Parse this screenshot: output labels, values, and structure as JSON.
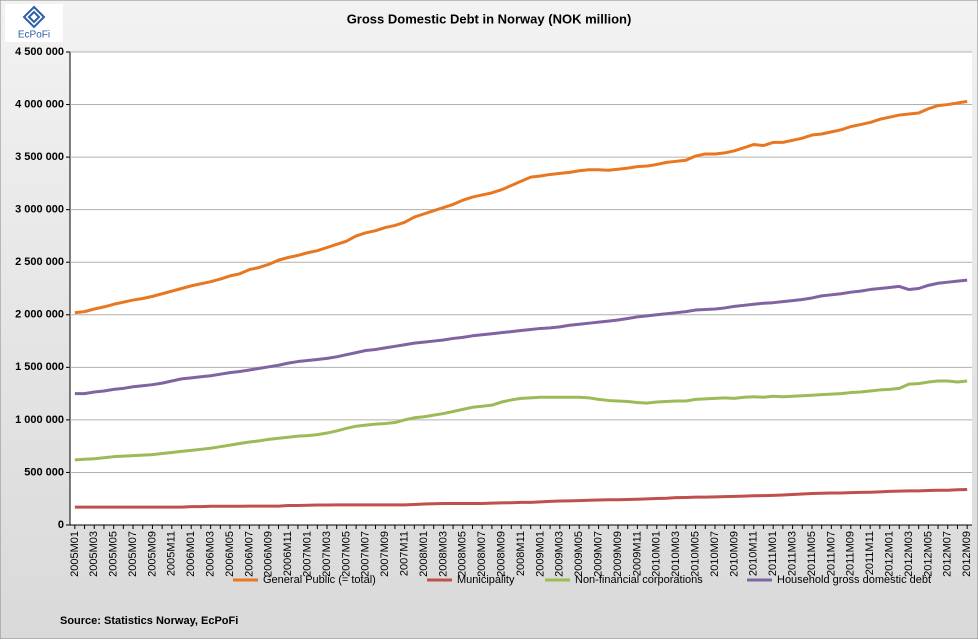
{
  "chart_data": {
    "type": "line",
    "title": "Gross Domestic Debt in Norway (NOK million)",
    "logo_text": "EcPoFi",
    "source": "Source: Statistics Norway, EcPoFi",
    "categories": [
      "2005M01",
      null,
      "2005M03",
      null,
      "2005M05",
      null,
      "2005M07",
      null,
      "2005M09",
      null,
      "2005M11",
      null,
      "2006M01",
      null,
      "2006M03",
      null,
      "2006M05",
      null,
      "2006M07",
      null,
      "2006M09",
      null,
      "2006M11",
      null,
      "2007M01",
      null,
      "2007M03",
      null,
      "2007M05",
      null,
      "2007M07",
      null,
      "2007M09",
      null,
      "2007M11",
      null,
      "2008M01",
      null,
      "2008M03",
      null,
      "2008M05",
      null,
      "2008M07",
      null,
      "2008M09",
      null,
      "2008M11",
      null,
      "2009M01",
      null,
      "2009M03",
      null,
      "2009M05",
      null,
      "2009M07",
      null,
      "2009M09",
      null,
      "2009M11",
      null,
      "2010M01",
      null,
      "2010M03",
      null,
      "2010M05",
      null,
      "2010M07",
      null,
      "2010M09",
      null,
      "2010M11",
      null,
      "2011M01",
      null,
      "2011M03",
      null,
      "2011M05",
      null,
      "2011M07",
      null,
      "2011M09",
      null,
      "2011M11",
      null,
      "2012M01",
      null,
      "2012M03",
      null,
      "2012M05",
      null,
      "2012M07",
      null,
      "2012M09"
    ],
    "series": [
      {
        "name": "General Public (= total)",
        "color": "#e87722",
        "values": [
          2020000,
          2030000,
          2055000,
          2075000,
          2100000,
          2120000,
          2140000,
          2155000,
          2175000,
          2200000,
          2225000,
          2250000,
          2275000,
          2295000,
          2315000,
          2340000,
          2370000,
          2390000,
          2430000,
          2450000,
          2480000,
          2520000,
          2545000,
          2565000,
          2590000,
          2610000,
          2640000,
          2670000,
          2700000,
          2750000,
          2780000,
          2800000,
          2830000,
          2850000,
          2880000,
          2930000,
          2960000,
          2990000,
          3020000,
          3050000,
          3090000,
          3120000,
          3140000,
          3160000,
          3190000,
          3230000,
          3270000,
          3310000,
          3320000,
          3335000,
          3345000,
          3355000,
          3370000,
          3380000,
          3380000,
          3375000,
          3385000,
          3395000,
          3410000,
          3415000,
          3430000,
          3450000,
          3460000,
          3470000,
          3510000,
          3530000,
          3530000,
          3540000,
          3560000,
          3590000,
          3620000,
          3610000,
          3640000,
          3640000,
          3660000,
          3680000,
          3710000,
          3720000,
          3740000,
          3760000,
          3790000,
          3810000,
          3830000,
          3860000,
          3880000,
          3900000,
          3910000,
          3920000,
          3960000,
          3990000,
          4000000,
          4015000,
          4030000
        ]
      },
      {
        "name": "Municipality",
        "color": "#c0504d",
        "values": [
          170000,
          170000,
          170000,
          170000,
          170000,
          170000,
          170000,
          170000,
          170000,
          170000,
          170000,
          170000,
          175000,
          175000,
          178000,
          178000,
          178000,
          178000,
          180000,
          180000,
          180000,
          180000,
          185000,
          185000,
          188000,
          190000,
          190000,
          192000,
          192000,
          192000,
          192000,
          192000,
          192000,
          192000,
          192000,
          195000,
          200000,
          202000,
          205000,
          205000,
          205000,
          205000,
          205000,
          208000,
          210000,
          212000,
          215000,
          215000,
          220000,
          225000,
          228000,
          230000,
          232000,
          235000,
          238000,
          240000,
          240000,
          242000,
          245000,
          248000,
          252000,
          255000,
          260000,
          262000,
          265000,
          265000,
          268000,
          270000,
          272000,
          275000,
          278000,
          280000,
          282000,
          285000,
          290000,
          295000,
          300000,
          302000,
          305000,
          305000,
          308000,
          310000,
          312000,
          315000,
          320000,
          322000,
          325000,
          325000,
          328000,
          330000,
          330000,
          335000,
          338000
        ]
      },
      {
        "name": "Non-financial corporations",
        "color": "#9bbb59",
        "values": [
          620000,
          625000,
          630000,
          640000,
          650000,
          655000,
          660000,
          665000,
          670000,
          680000,
          690000,
          700000,
          710000,
          720000,
          730000,
          745000,
          760000,
          775000,
          790000,
          800000,
          815000,
          825000,
          835000,
          845000,
          850000,
          860000,
          875000,
          895000,
          920000,
          940000,
          950000,
          960000,
          965000,
          975000,
          1000000,
          1020000,
          1030000,
          1045000,
          1060000,
          1080000,
          1100000,
          1120000,
          1130000,
          1140000,
          1170000,
          1190000,
          1205000,
          1210000,
          1215000,
          1215000,
          1215000,
          1215000,
          1215000,
          1210000,
          1195000,
          1185000,
          1180000,
          1175000,
          1165000,
          1160000,
          1170000,
          1175000,
          1180000,
          1180000,
          1195000,
          1200000,
          1205000,
          1210000,
          1205000,
          1215000,
          1220000,
          1215000,
          1225000,
          1220000,
          1225000,
          1230000,
          1235000,
          1240000,
          1245000,
          1250000,
          1260000,
          1265000,
          1275000,
          1285000,
          1290000,
          1300000,
          1340000,
          1345000,
          1360000,
          1370000,
          1370000,
          1360000,
          1370000
        ]
      },
      {
        "name": "Household gross domestic debt",
        "color": "#8064a2",
        "values": [
          1250000,
          1250000,
          1265000,
          1275000,
          1290000,
          1300000,
          1315000,
          1325000,
          1335000,
          1350000,
          1370000,
          1390000,
          1400000,
          1410000,
          1420000,
          1435000,
          1450000,
          1460000,
          1475000,
          1490000,
          1505000,
          1520000,
          1540000,
          1555000,
          1565000,
          1575000,
          1585000,
          1600000,
          1620000,
          1640000,
          1660000,
          1670000,
          1685000,
          1700000,
          1715000,
          1730000,
          1740000,
          1750000,
          1760000,
          1775000,
          1785000,
          1800000,
          1810000,
          1820000,
          1830000,
          1840000,
          1850000,
          1860000,
          1870000,
          1875000,
          1885000,
          1900000,
          1910000,
          1920000,
          1930000,
          1940000,
          1950000,
          1965000,
          1980000,
          1990000,
          2000000,
          2010000,
          2020000,
          2030000,
          2045000,
          2050000,
          2055000,
          2065000,
          2080000,
          2090000,
          2100000,
          2110000,
          2115000,
          2125000,
          2135000,
          2145000,
          2160000,
          2180000,
          2190000,
          2200000,
          2215000,
          2225000,
          2240000,
          2250000,
          2260000,
          2270000,
          2240000,
          2250000,
          2280000,
          2300000,
          2310000,
          2320000,
          2330000
        ]
      }
    ],
    "ylim": [
      0,
      4500000
    ],
    "yticks": [
      0,
      {
        "value": 500000,
        "label": "500 000"
      },
      {
        "value": 1000000,
        "label": "1 000 000"
      },
      {
        "value": 1500000,
        "label": "1 500 000"
      },
      {
        "value": 2000000,
        "label": "2 000 000"
      },
      {
        "value": 2500000,
        "label": "2 500 000"
      },
      {
        "value": 3000000,
        "label": "3 000 000"
      },
      {
        "value": 3500000,
        "label": "3 500 000"
      },
      {
        "value": 4000000,
        "label": "4 000 000"
      },
      {
        "value": 4500000,
        "label": "4 500 000"
      }
    ],
    "grid": true,
    "legend": "bottom"
  }
}
